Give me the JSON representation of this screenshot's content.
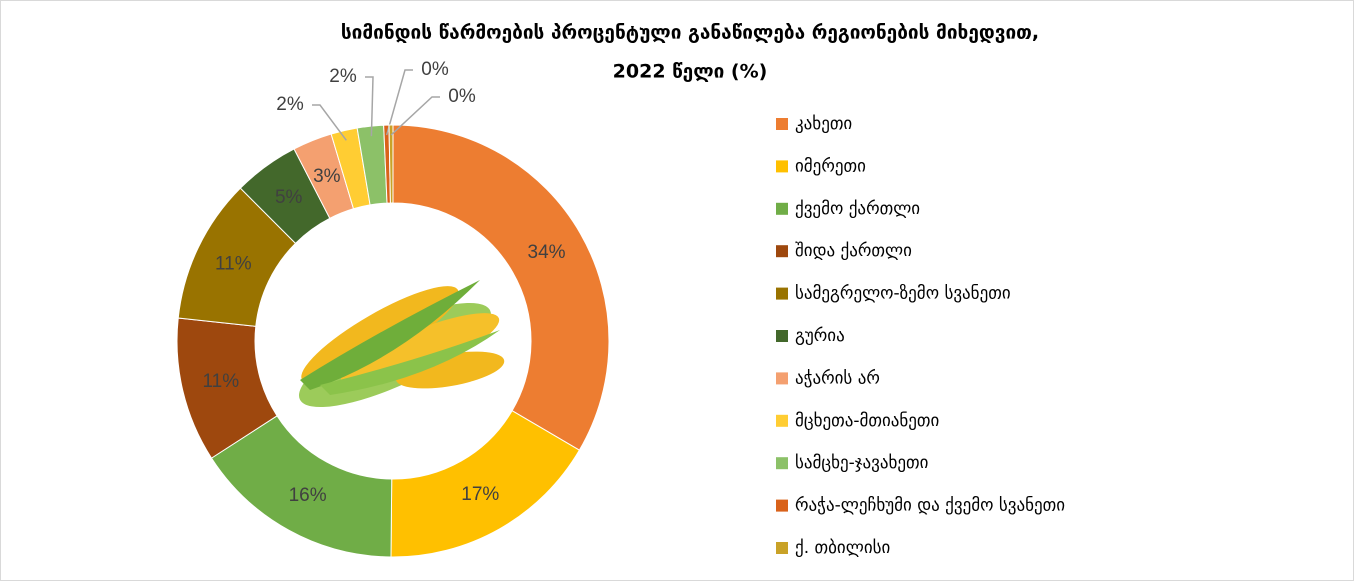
{
  "chart_data": {
    "type": "donut",
    "title": [
      "სიმინდის წარმოების პროცენტული განაწილება რეგიონების მიხედვით,",
      "2022 წელი (%)"
    ],
    "categories": [
      "კახეთი",
      "იმერეთი",
      "ქვემო ქართლი",
      "შიდა ქართლი",
      "სამეგრელო-ზემო სვანეთი",
      "გურია",
      "აჭარის არ",
      "მცხეთა-მთიანეთი",
      "სამცხე-ჯავახეთი",
      "რაჭა-ლეჩხუმი და ქვემო სვანეთი",
      "ქ. თბილისი"
    ],
    "values": [
      34,
      17,
      16,
      11,
      11,
      5,
      3,
      2,
      2,
      0.4,
      0.3
    ],
    "value_labels": [
      "34%",
      "17%",
      "16%",
      "11%",
      "11%",
      "5%",
      "3%",
      "2%",
      "2%",
      "0%",
      "0%"
    ],
    "colors": [
      "#ED7D31",
      "#FFC000",
      "#70AD47",
      "#9E480E",
      "#997300",
      "#43682B",
      "#F4A070",
      "#FFCD33",
      "#8CC168",
      "#D9621A",
      "#C9A227"
    ],
    "legend": "right"
  }
}
